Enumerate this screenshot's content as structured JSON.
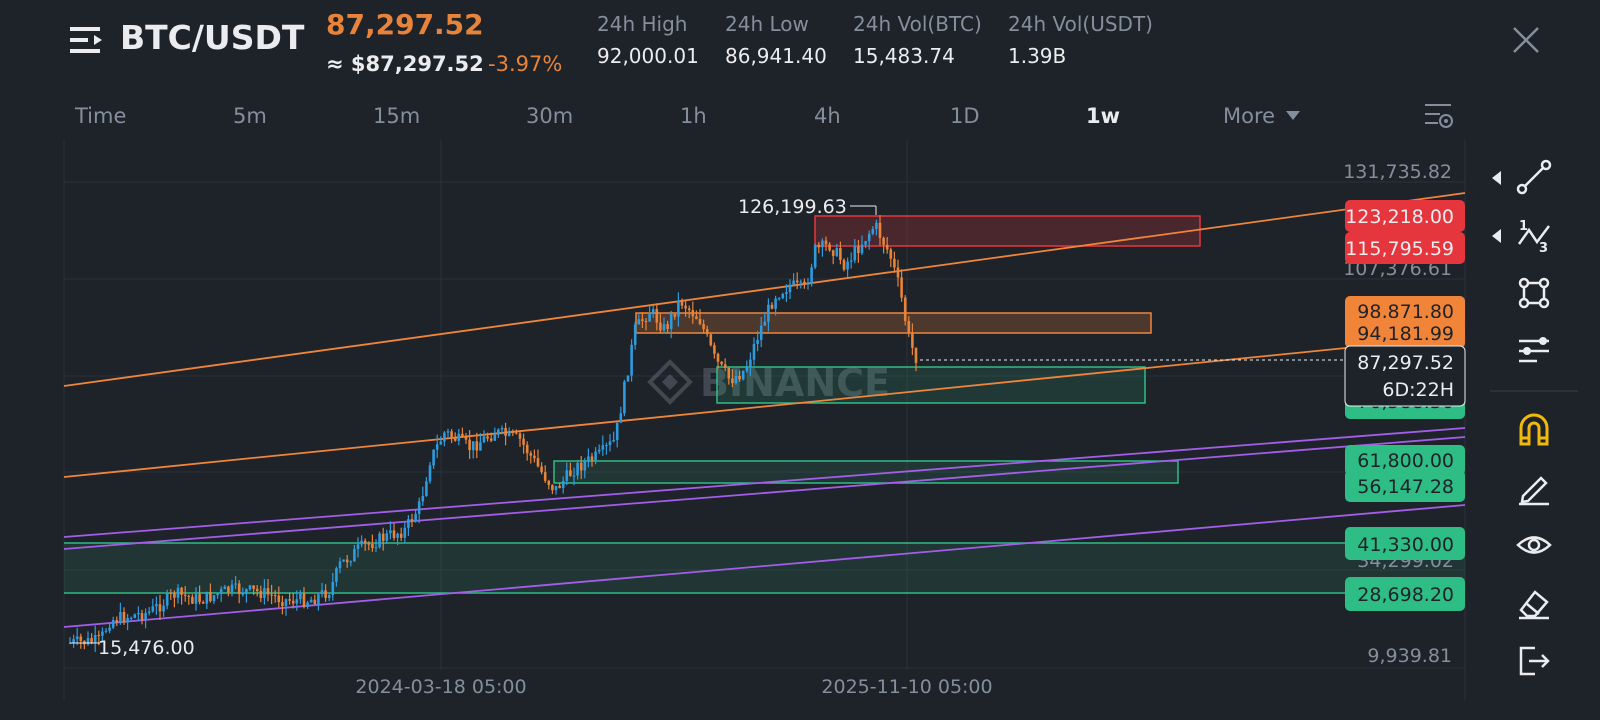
{
  "header": {
    "pair": "BTC/USDT",
    "last_price": "87,297.52",
    "usd_price": "≈ $87,297.52",
    "change_pct": "-3.97%",
    "stats": [
      {
        "label": "24h High",
        "value": "92,000.01"
      },
      {
        "label": "24h Low",
        "value": "86,941.40"
      },
      {
        "label": "24h Vol(BTC)",
        "value": "15,483.74"
      },
      {
        "label": "24h Vol(USDT)",
        "value": "1.39B"
      }
    ]
  },
  "timeframes": [
    "Time",
    "5m",
    "15m",
    "30m",
    "1h",
    "4h",
    "1D",
    "1w",
    "More"
  ],
  "active_timeframe": "1w",
  "chart": {
    "watermark": "BINANCE",
    "x_labels": [
      "2024-03-18 05:00",
      "2025-11-10 05:00"
    ],
    "y_ticks": [
      "131,735.82",
      "107,376.61",
      "9,939.81"
    ],
    "high_marker": "126,199.63",
    "low_marker": "15,476.00",
    "price_tags": [
      {
        "value": "123,218.00",
        "color": "#e5363d"
      },
      {
        "value": "115,795.59",
        "color": "#e5363d"
      },
      {
        "value": "98,871.80",
        "color": "#f0853a"
      },
      {
        "value": "94,181.99",
        "color": "#f0853a"
      },
      {
        "value": "87,297.52",
        "color": "#1e2329"
      },
      {
        "value": "76,588.30",
        "color": "#2ebd85"
      },
      {
        "value": "61,800.00",
        "color": "#2ebd85"
      },
      {
        "value": "56,147.28",
        "color": "#2ebd85"
      },
      {
        "value": "41,330.00",
        "color": "#2ebd85"
      },
      {
        "value": "34,299.02",
        "color": "#2ebd85"
      },
      {
        "value": "28,698.20",
        "color": "#2ebd85"
      }
    ],
    "countdown": "6D:22H",
    "colors": {
      "up": "#2e9bde",
      "down": "#e8833a",
      "zone_red": "#e5363d",
      "zone_orange": "#f0853a",
      "zone_green": "#2ebd85",
      "channel": "#a25ee8"
    }
  },
  "toolbar": [
    "trend-line",
    "fibonacci",
    "shapes",
    "indicators",
    "magnet",
    "brush",
    "visibility",
    "eraser",
    "exit"
  ]
}
